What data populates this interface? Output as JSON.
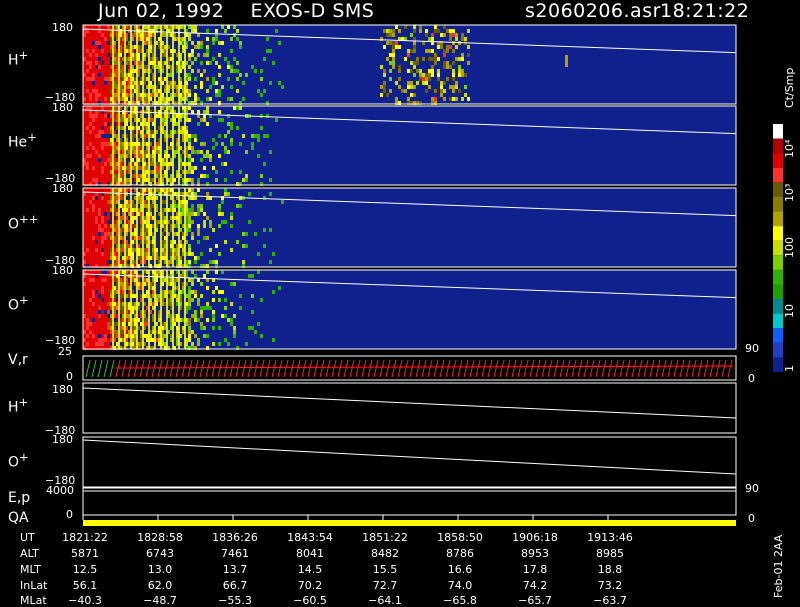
{
  "header": {
    "title": "Jun 02, 1992    EXOS-D SMS",
    "file": "s2060206.asr",
    "time": "18:21:22"
  },
  "panels": [
    {
      "label": "H",
      "sup": "+",
      "ytop": "180",
      "ybot": "−180"
    },
    {
      "label": "He",
      "sup": "+",
      "ytop": "180",
      "ybot": "−180"
    },
    {
      "label": "O",
      "sup": "++",
      "ytop": "180",
      "ybot": "−180"
    },
    {
      "label": "O",
      "sup": "+",
      "ytop": "180",
      "ybot": "−180"
    }
  ],
  "lower_panels": {
    "vr": {
      "label": "V,r",
      "ytop": "25",
      "ybot": "0",
      "right_top": "90",
      "right_bot": "0"
    },
    "h": {
      "label": "H",
      "sup": "+",
      "ytop": "180",
      "ybot": "−180"
    },
    "o": {
      "label": "O",
      "sup": "+",
      "ytop": "180",
      "ybot": "−180"
    },
    "ep": {
      "label": "E,p",
      "ytop": "4000",
      "ybot": "0",
      "right_top": "90",
      "right_bot": "0"
    },
    "qa": {
      "label": "QA"
    }
  },
  "colorbar": {
    "unit": "Ct/Smp",
    "ticks": [
      "10⁴",
      "10³",
      "100",
      "10",
      "1"
    ],
    "colors": [
      "#ffffff",
      "#b00000",
      "#e00000",
      "#ff3030",
      "#6a5a00",
      "#8a7a00",
      "#b0a000",
      "#ffff00",
      "#c8e000",
      "#7cd000",
      "#30b000",
      "#20a000",
      "#008c8c",
      "#00c8c8",
      "#1060ff",
      "#2040c0",
      "#10208c"
    ]
  },
  "table": {
    "rows": [
      {
        "name": "UT",
        "values": [
          "1821:22",
          "1828:58",
          "1836:26",
          "1843:54",
          "1851:22",
          "1858:50",
          "1906:18",
          "1913:46"
        ]
      },
      {
        "name": "ALT",
        "values": [
          "5871",
          "6743",
          "7461",
          "8041",
          "8482",
          "8786",
          "8953",
          "8985"
        ]
      },
      {
        "name": "MLT",
        "values": [
          "12.5",
          "13.0",
          "13.7",
          "14.5",
          "15.5",
          "16.6",
          "17.8",
          "18.8"
        ]
      },
      {
        "name": "InLat",
        "values": [
          "56.1",
          "62.0",
          "66.7",
          "70.2",
          "72.7",
          "74.0",
          "74.2",
          "73.2"
        ]
      },
      {
        "name": "MLat",
        "values": [
          "−40.3",
          "−48.7",
          "−55.3",
          "−60.5",
          "−64.1",
          "−65.8",
          "−65.7",
          "−63.7"
        ]
      }
    ]
  },
  "footer_note": "Feb-01 2AA",
  "chart_data": {
    "type": "heatmap",
    "title": "Jun 02, 1992    EXOS-D SMS",
    "x_label": "UT",
    "x_ticks": [
      "1821:22",
      "1828:58",
      "1836:26",
      "1843:54",
      "1851:22",
      "1858:50",
      "1906:18",
      "1913:46"
    ],
    "species": [
      "H+",
      "He+",
      "O++",
      "O+"
    ],
    "ylim": [
      -180,
      180
    ],
    "colorbar_unit": "Ct/Smp",
    "colorbar_range": [
      1,
      10000
    ],
    "colors": {
      "background": "#10208c",
      "high": "#ffff00",
      "saturated": "#ffffff",
      "trace": "#ffffff",
      "vr_trace": "#ff2020",
      "vr_trace2": "#30c030",
      "qa": "#ffff00"
    }
  }
}
